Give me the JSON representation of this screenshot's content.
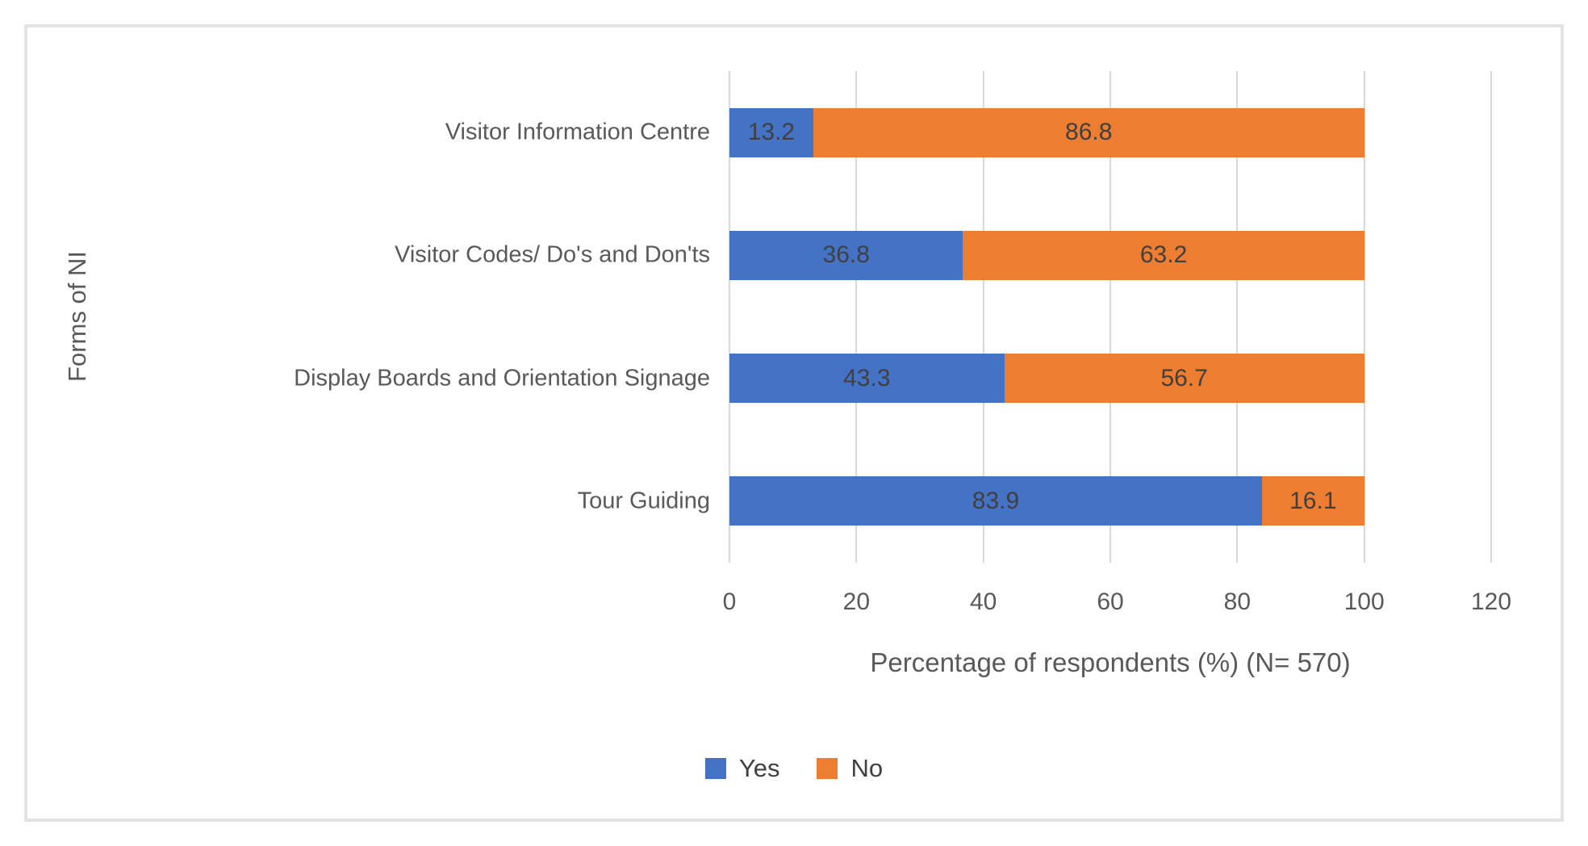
{
  "chart_data": {
    "type": "bar",
    "orientation": "horizontal",
    "stacked": true,
    "categories": [
      "Visitor Information Centre",
      "Visitor Codes/ Do's and Don'ts",
      "Display Boards and Orientation Signage",
      "Tour Guiding"
    ],
    "series": [
      {
        "name": "Yes",
        "color": "#4472C4",
        "values": [
          13.2,
          36.8,
          43.3,
          83.9
        ]
      },
      {
        "name": "No",
        "color": "#ED7D31",
        "values": [
          86.8,
          63.2,
          56.7,
          16.1
        ]
      }
    ],
    "xlabel": "Percentage of respondents (%) (N= 570)",
    "ylabel": "Forms of NI",
    "xlim": [
      0,
      120
    ],
    "xticks": [
      0,
      20,
      40,
      60,
      80,
      100,
      120
    ],
    "grid": true,
    "legend_position": "bottom",
    "data_labels": true
  },
  "colors": {
    "gridline": "#D9D9D9",
    "axis_text": "#595959",
    "data_label": "#404040",
    "frame_border": "#E2E2E2",
    "background": "#FFFFFF"
  }
}
